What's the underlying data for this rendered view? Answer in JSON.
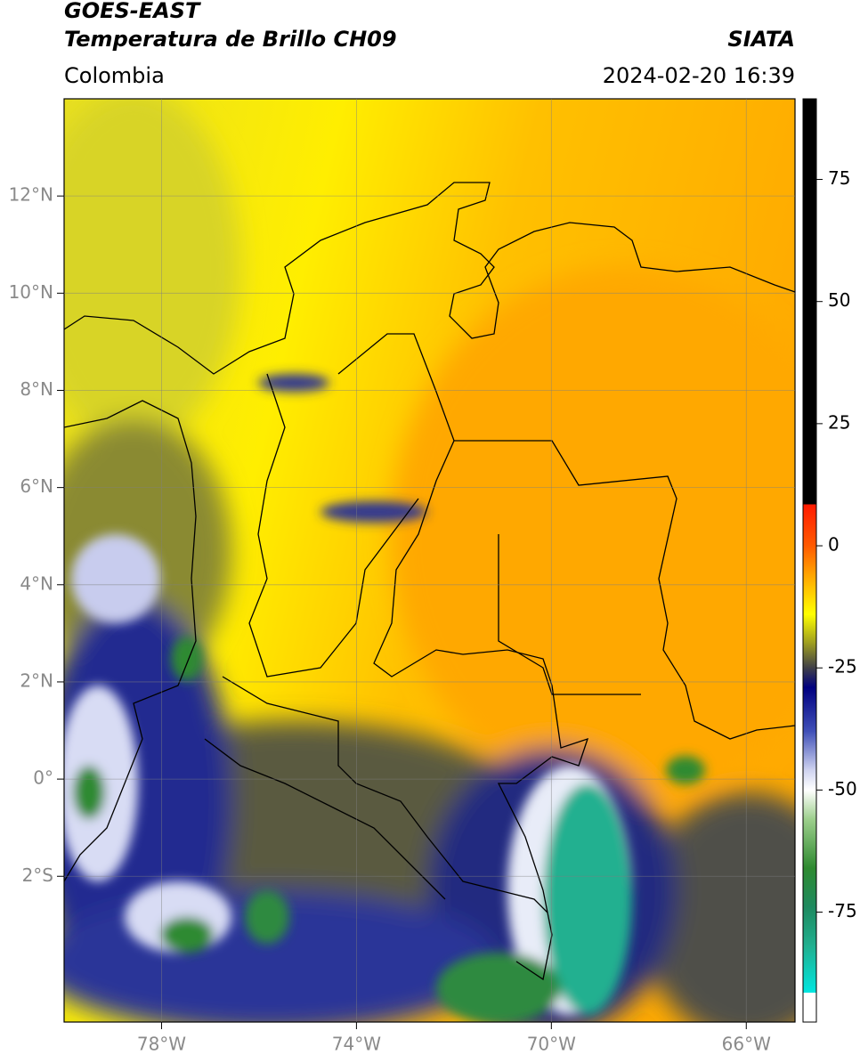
{
  "header": {
    "title": "GOES-EAST",
    "subtitle": "Temperatura de Brillo CH09",
    "source": "SIATA",
    "region": "Colombia",
    "datetime": "2024-02-20 16:39"
  },
  "map": {
    "xlim": [
      -80,
      -65
    ],
    "ylim": [
      -5,
      14
    ],
    "xticks": [
      {
        "value": -78,
        "label": "78°W"
      },
      {
        "value": -74,
        "label": "74°W"
      },
      {
        "value": -70,
        "label": "70°W"
      },
      {
        "value": -66,
        "label": "66°W"
      }
    ],
    "yticks": [
      {
        "value": 12,
        "label": "12°N"
      },
      {
        "value": 10,
        "label": "10°N"
      },
      {
        "value": 8,
        "label": "8°N"
      },
      {
        "value": 6,
        "label": "6°N"
      },
      {
        "value": 4,
        "label": "4°N"
      },
      {
        "value": 2,
        "label": "2°N"
      },
      {
        "value": 0,
        "label": "0°"
      },
      {
        "value": -2,
        "label": "2°S"
      }
    ],
    "grid": true
  },
  "colorbar": {
    "lim": [
      -97.5,
      91.5
    ],
    "ticks": [
      75,
      50,
      25,
      0,
      -25,
      -50,
      -75
    ],
    "colorscale": [
      {
        "value": 91.5,
        "color": "#000000"
      },
      {
        "value": 8.5,
        "color": "#000000"
      },
      {
        "value": 8.5,
        "color": "#ff1a00"
      },
      {
        "value": 0,
        "color": "#ff5a00"
      },
      {
        "value": -6,
        "color": "#ffa500"
      },
      {
        "value": -14,
        "color": "#ffff00"
      },
      {
        "value": -20,
        "color": "#9c9c20"
      },
      {
        "value": -25,
        "color": "#404048"
      },
      {
        "value": -29,
        "color": "#000080"
      },
      {
        "value": -38,
        "color": "#4050b8"
      },
      {
        "value": -46,
        "color": "#d0d4f0"
      },
      {
        "value": -50,
        "color": "#ffffff"
      },
      {
        "value": -56,
        "color": "#9ccf8c"
      },
      {
        "value": -66,
        "color": "#2e8a30"
      },
      {
        "value": -74,
        "color": "#1e8a60"
      },
      {
        "value": -82,
        "color": "#20b090"
      },
      {
        "value": -91.5,
        "color": "#00e6e0"
      },
      {
        "value": -91.5,
        "color": "#ffffff"
      },
      {
        "value": -97.5,
        "color": "#ffffff"
      }
    ]
  }
}
